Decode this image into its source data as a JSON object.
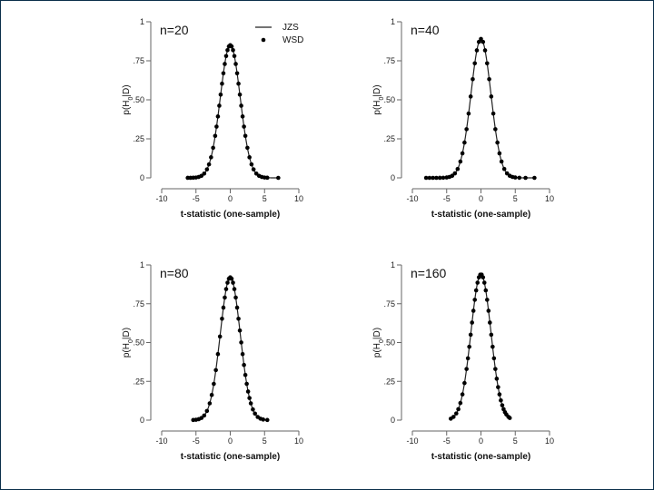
{
  "chart_data": [
    {
      "type": "line",
      "title": "n=20",
      "xlabel": "t-statistic (one-sample)",
      "ylabel_main": "p(H",
      "ylabel_sub": "0",
      "ylabel_end": "|D)",
      "xlim": [
        -10,
        10
      ],
      "ylim": [
        0,
        1
      ],
      "xticks": [
        -10,
        -5,
        0,
        5,
        10
      ],
      "xtick_labels": [
        "-10",
        "-5",
        "0",
        "5",
        "10"
      ],
      "yticks": [
        0,
        0.25,
        0.5,
        0.75,
        1
      ],
      "ytick_labels": [
        "0",
        ".25",
        ".50",
        ".75",
        "1"
      ],
      "peak": 0.85,
      "sigma": 1.45,
      "series": [
        {
          "name": "JZS",
          "kind": "line"
        },
        {
          "name": "WSD",
          "kind": "points",
          "x": [
            -6.2,
            -5.8,
            -5.4,
            -5.0,
            -4.6,
            -4.2,
            -3.8,
            -3.4,
            -3.1,
            -2.8,
            -2.5,
            -2.2,
            -2.0,
            -1.8,
            -1.6,
            -1.4,
            -1.2,
            -1.0,
            -0.8,
            -0.6,
            -0.4,
            -0.2,
            0.0,
            0.2,
            0.4,
            0.6,
            0.8,
            1.0,
            1.2,
            1.4,
            1.6,
            1.8,
            2.0,
            2.2,
            2.5,
            2.8,
            3.1,
            3.4,
            3.8,
            4.2,
            4.6,
            5.0,
            5.4,
            7.0
          ]
        }
      ],
      "legend": [
        "JZS",
        "WSD"
      ]
    },
    {
      "type": "line",
      "title": "n=40",
      "xlabel": "t-statistic (one-sample)",
      "ylabel_main": "p(H",
      "ylabel_sub": "0",
      "ylabel_end": "|D)",
      "xlim": [
        -10,
        10
      ],
      "ylim": [
        0,
        1
      ],
      "xticks": [
        -10,
        -5,
        0,
        5,
        10
      ],
      "xtick_labels": [
        "-10",
        "-5",
        "0",
        "5",
        "10"
      ],
      "yticks": [
        0,
        0.25,
        0.5,
        0.75,
        1
      ],
      "ytick_labels": [
        "0",
        ".25",
        ".50",
        ".75",
        "1"
      ],
      "peak": 0.89,
      "sigma": 1.45,
      "series": [
        {
          "name": "JZS",
          "kind": "line"
        },
        {
          "name": "WSD",
          "kind": "points",
          "x": [
            -8.0,
            -7.5,
            -7.0,
            -6.5,
            -6.0,
            -5.5,
            -5.0,
            -4.6,
            -4.2,
            -3.8,
            -3.4,
            -3.0,
            -2.7,
            -2.4,
            -2.1,
            -1.8,
            -1.5,
            -1.2,
            -0.9,
            -0.6,
            -0.3,
            0.0,
            0.3,
            0.6,
            0.9,
            1.2,
            1.5,
            1.8,
            2.1,
            2.4,
            2.7,
            3.0,
            3.4,
            3.8,
            4.2,
            4.6,
            5.0,
            5.6,
            6.5,
            7.8
          ]
        }
      ]
    },
    {
      "type": "line",
      "title": "n=80",
      "xlabel": "t-statistic (one-sample)",
      "ylabel_main": "p(H",
      "ylabel_sub": "0",
      "ylabel_end": "|D)",
      "xlim": [
        -10,
        10
      ],
      "ylim": [
        0,
        1
      ],
      "xticks": [
        -10,
        -5,
        0,
        5,
        10
      ],
      "xtick_labels": [
        "-10",
        "-5",
        "0",
        "5",
        "10"
      ],
      "yticks": [
        0,
        0.25,
        0.5,
        0.75,
        1
      ],
      "ytick_labels": [
        "0",
        ".25",
        ".50",
        ".75",
        "1"
      ],
      "peak": 0.92,
      "sigma": 1.45,
      "series": [
        {
          "name": "JZS",
          "kind": "line"
        },
        {
          "name": "WSD",
          "kind": "points",
          "x": [
            -5.4,
            -5.0,
            -4.6,
            -4.2,
            -3.8,
            -3.4,
            -3.0,
            -2.7,
            -2.4,
            -2.1,
            -1.8,
            -1.5,
            -1.2,
            -1.0,
            -0.8,
            -0.6,
            -0.4,
            -0.2,
            0.0,
            0.2,
            0.4,
            0.6,
            0.8,
            1.0,
            1.2,
            1.4,
            1.6,
            1.8,
            2.0,
            2.2,
            2.4,
            2.6,
            2.8,
            3.0,
            3.3,
            3.6,
            4.0,
            4.4,
            4.8,
            5.4
          ]
        }
      ]
    },
    {
      "type": "line",
      "title": "n=160",
      "xlabel": "t-statistic (one-sample)",
      "ylabel_main": "p(H",
      "ylabel_sub": "0",
      "ylabel_end": "|D)",
      "xlim": [
        -10,
        10
      ],
      "ylim": [
        0,
        1
      ],
      "xticks": [
        -10,
        -5,
        0,
        5,
        10
      ],
      "xtick_labels": [
        "-10",
        "-5",
        "0",
        "5",
        "10"
      ],
      "yticks": [
        0,
        0.25,
        0.5,
        0.75,
        1
      ],
      "ytick_labels": [
        "0",
        ".25",
        ".50",
        ".75",
        "1"
      ],
      "peak": 0.94,
      "sigma": 1.45,
      "series": [
        {
          "name": "JZS",
          "kind": "line"
        },
        {
          "name": "WSD",
          "kind": "points",
          "x": [
            -4.4,
            -4.0,
            -3.6,
            -3.3,
            -3.0,
            -2.7,
            -2.4,
            -2.1,
            -1.9,
            -1.7,
            -1.5,
            -1.3,
            -1.1,
            -0.9,
            -0.7,
            -0.5,
            -0.3,
            -0.1,
            0.1,
            0.3,
            0.5,
            0.7,
            0.9,
            1.1,
            1.3,
            1.5,
            1.7,
            1.9,
            2.1,
            2.3,
            2.5,
            2.7,
            2.9,
            3.1,
            3.3,
            3.5,
            3.7,
            4.0,
            4.2
          ]
        }
      ]
    }
  ]
}
